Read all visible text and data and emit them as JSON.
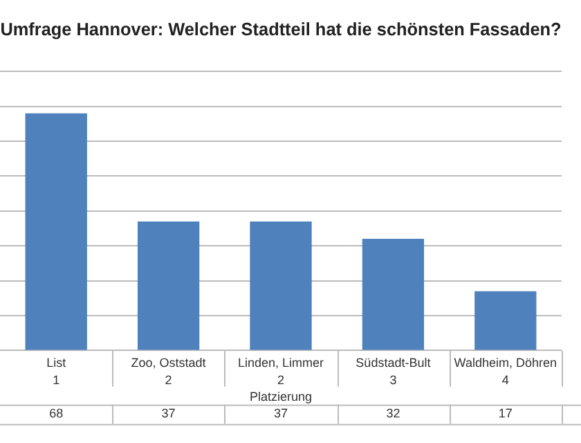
{
  "chart_data": {
    "type": "bar",
    "title": "Umfrage Hannover: Welcher Stadtteil hat die schönsten Fassaden?",
    "xlabel": "Platzierung",
    "categories": [
      "List",
      "Zoo, Oststadt",
      "Linden, Limmer",
      "Südstadt-Bult",
      "Waldheim, Döhren"
    ],
    "values": [
      68,
      37,
      37,
      32,
      17
    ],
    "color": "#4f81bd",
    "ylim": [
      0,
      80
    ],
    "yticks": [
      {
        "value": 0,
        "label": null
      },
      {
        "value": 10,
        "label": null
      },
      {
        "value": 20,
        "label": null
      },
      {
        "value": 30,
        "label": null
      },
      {
        "value": 40,
        "label": null
      },
      {
        "value": 50,
        "label": null
      },
      {
        "value": 60,
        "label": null
      },
      {
        "value": 70,
        "label": null
      },
      {
        "value": 80,
        "label": null
      }
    ],
    "grid": "y",
    "tick_labels": "x",
    "data_labels": true,
    "annotations": [
      "1",
      "2",
      "2",
      "3",
      "4"
    ]
  }
}
